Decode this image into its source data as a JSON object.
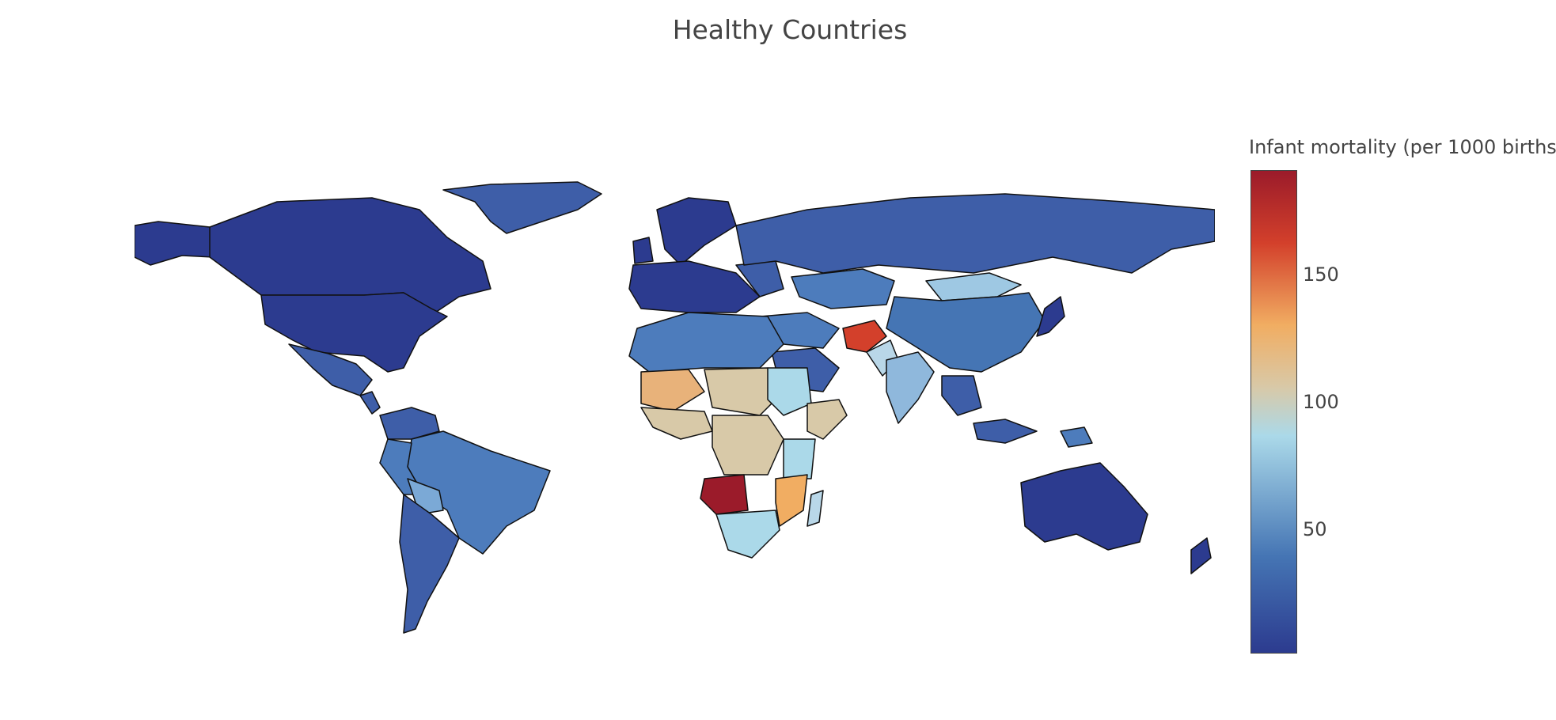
{
  "title": "Healthy Countries",
  "colorbar": {
    "title": "Infant mortality (per 1000 births)",
    "ticks": [
      "50",
      "100",
      "150"
    ],
    "colors": [
      "#2c3b8f",
      "#4575b4",
      "#abd9e9",
      "#d8c9a8",
      "#f1ad62",
      "#d3402b",
      "#9b1b2a"
    ]
  }
}
